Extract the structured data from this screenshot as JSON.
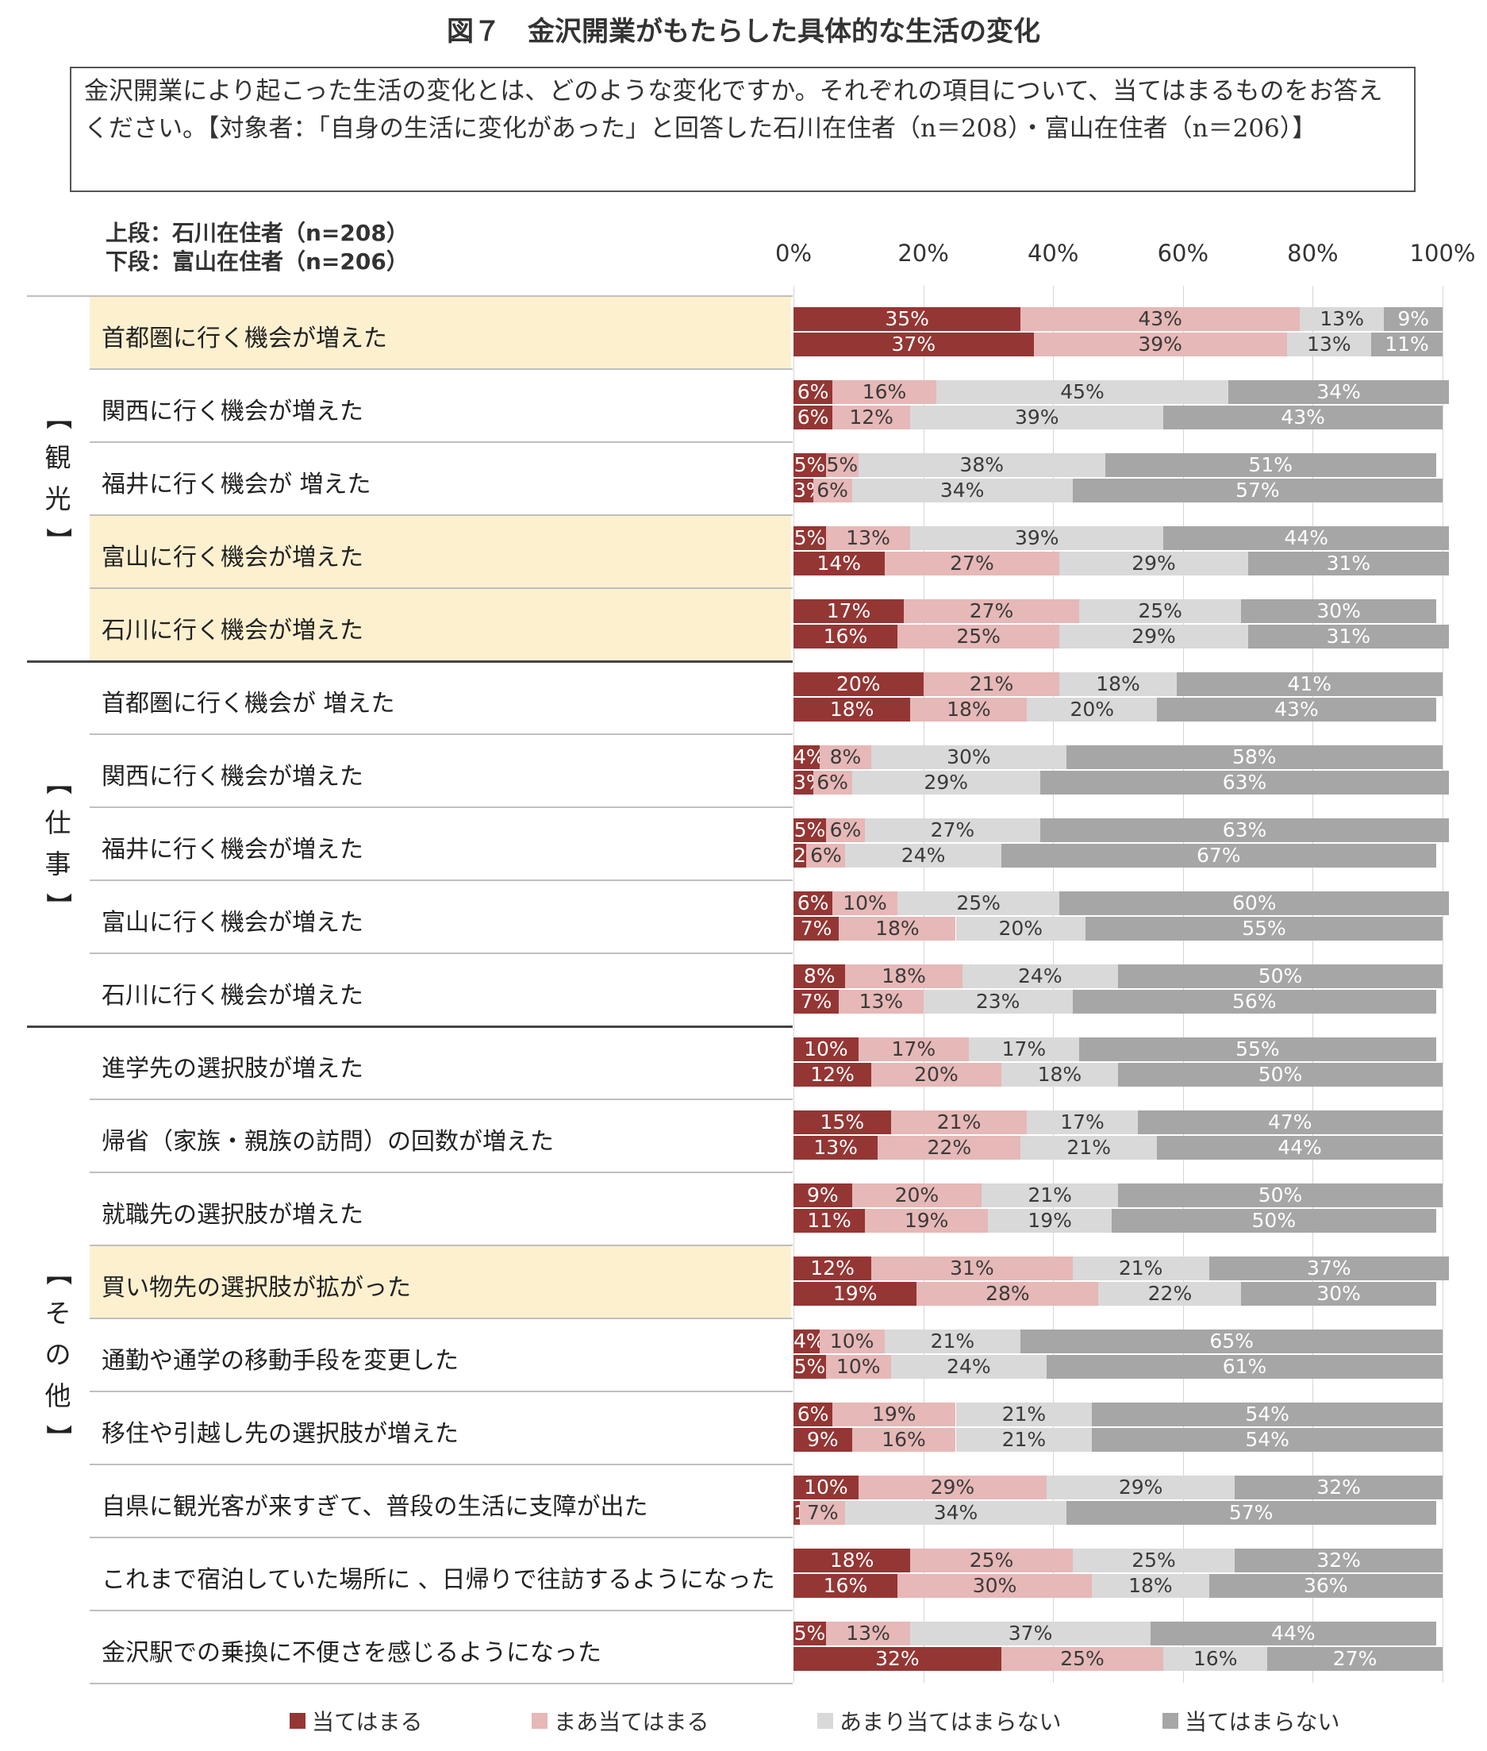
{
  "title": "図７　金沢開業がもたらした具体的な生活の変化",
  "question": "金沢開業により起こった生活の変化とは、どのような変化ですか。それぞれの項目について、当てはまるものをお答えください。【対象者：「自身の生活に変化があった」と回答した石川在住者（n＝208）・富山在住者（n＝206）】",
  "sub_labels": [
    "上段：石川在住者（n=208）",
    "下段：富山在住者（n=206）"
  ],
  "colors": [
    "#943634",
    "#e6b8b7",
    "#d9d9d9",
    "#a6a6a6"
  ],
  "chart_data": {
    "type": "bar",
    "orientation": "horizontal-stacked-100",
    "xlim": [
      0,
      100
    ],
    "ticks": [
      "0%",
      "20%",
      "40%",
      "60%",
      "80%",
      "100%"
    ],
    "legend_position": "bottom",
    "legend": [
      "当てはまる",
      "まあ当てはまる",
      "あまり当てはまらない",
      "当てはまらない"
    ],
    "groups": [
      {
        "label": "【観光】",
        "start": 0,
        "end": 4
      },
      {
        "label": "【仕事】",
        "start": 5,
        "end": 9
      },
      {
        "label": "【その他】",
        "start": 10,
        "end": 18
      }
    ],
    "categories": [
      {
        "label": "首都圏に行く機会が増えた",
        "highlight": true,
        "ishikawa": [
          35,
          43,
          13,
          9
        ],
        "toyama": [
          37,
          39,
          13,
          11
        ]
      },
      {
        "label": "関西に行く機会が増えた",
        "highlight": false,
        "ishikawa": [
          6,
          16,
          45,
          34
        ],
        "toyama": [
          6,
          12,
          39,
          43
        ]
      },
      {
        "label": "福井に行く機会が 増えた",
        "highlight": false,
        "ishikawa": [
          5,
          5,
          38,
          51
        ],
        "toyama": [
          3,
          6,
          34,
          57
        ]
      },
      {
        "label": "富山に行く機会が増えた",
        "highlight": true,
        "ishikawa": [
          5,
          13,
          39,
          44
        ],
        "toyama": [
          14,
          27,
          29,
          31
        ]
      },
      {
        "label": "石川に行く機会が増えた",
        "highlight": true,
        "ishikawa": [
          17,
          27,
          25,
          30
        ],
        "toyama": [
          16,
          25,
          29,
          31
        ]
      },
      {
        "label": "首都圏に行く機会が 増えた",
        "highlight": false,
        "ishikawa": [
          20,
          21,
          18,
          41
        ],
        "toyama": [
          18,
          18,
          20,
          43
        ]
      },
      {
        "label": "関西に行く機会が増えた",
        "highlight": false,
        "ishikawa": [
          4,
          8,
          30,
          58
        ],
        "toyama": [
          3,
          6,
          29,
          63
        ]
      },
      {
        "label": "福井に行く機会が増えた",
        "highlight": false,
        "ishikawa": [
          5,
          6,
          27,
          63
        ],
        "toyama": [
          2,
          6,
          24,
          67
        ]
      },
      {
        "label": "富山に行く機会が増えた",
        "highlight": false,
        "ishikawa": [
          6,
          10,
          25,
          60
        ],
        "toyama": [
          7,
          18,
          20,
          55
        ]
      },
      {
        "label": "石川に行く機会が増えた",
        "highlight": false,
        "ishikawa": [
          8,
          18,
          24,
          50
        ],
        "toyama": [
          7,
          13,
          23,
          56
        ]
      },
      {
        "label": "進学先の選択肢が増えた",
        "highlight": false,
        "ishikawa": [
          10,
          17,
          17,
          55
        ],
        "toyama": [
          12,
          20,
          18,
          50
        ]
      },
      {
        "label": "帰省（家族・親族の訪問）の回数が増えた",
        "highlight": false,
        "ishikawa": [
          15,
          21,
          17,
          47
        ],
        "toyama": [
          13,
          22,
          21,
          44
        ]
      },
      {
        "label": "就職先の選択肢が増えた",
        "highlight": false,
        "ishikawa": [
          9,
          20,
          21,
          50
        ],
        "toyama": [
          11,
          19,
          19,
          50
        ]
      },
      {
        "label": "買い物先の選択肢が拡がった",
        "highlight": true,
        "ishikawa": [
          12,
          31,
          21,
          37
        ],
        "toyama": [
          19,
          28,
          22,
          30
        ]
      },
      {
        "label": "通勤や通学の移動手段を変更した",
        "highlight": false,
        "ishikawa": [
          4,
          10,
          21,
          65
        ],
        "toyama": [
          5,
          10,
          24,
          61
        ]
      },
      {
        "label": "移住や引越し先の選択肢が増えた",
        "highlight": false,
        "ishikawa": [
          6,
          19,
          21,
          54
        ],
        "toyama": [
          9,
          16,
          21,
          54
        ]
      },
      {
        "label": "自県に観光客が来すぎて、普段の生活に支障が出た",
        "highlight": false,
        "ishikawa": [
          10,
          29,
          29,
          32
        ],
        "toyama": [
          1,
          7,
          34,
          57
        ]
      },
      {
        "label": "これまで宿泊していた場所に 、日帰りで往訪するようになった",
        "highlight": false,
        "ishikawa": [
          18,
          25,
          25,
          32
        ],
        "toyama": [
          16,
          30,
          18,
          36
        ]
      },
      {
        "label": "金沢駅での乗換に不便さを感じるようになった",
        "highlight": false,
        "ishikawa": [
          5,
          13,
          37,
          44
        ],
        "toyama": [
          32,
          25,
          16,
          27
        ]
      }
    ]
  }
}
